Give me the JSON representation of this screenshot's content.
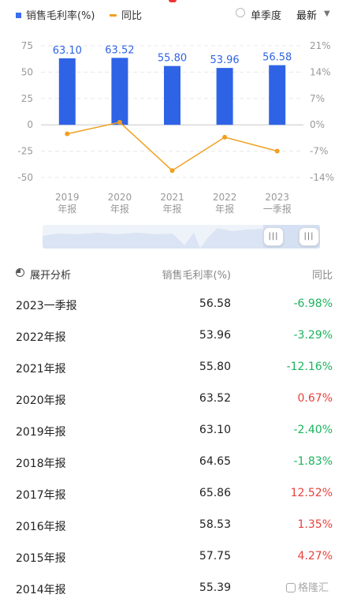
{
  "legend": {
    "gross_margin": "销售毛利率(%)",
    "yoy": "同比"
  },
  "controls": {
    "single_quarter": "单季度",
    "latest": "最新"
  },
  "chart_data": {
    "type": "bar",
    "categories": [
      [
        "2019",
        "年报"
      ],
      [
        "2020",
        "年报"
      ],
      [
        "2021",
        "年报"
      ],
      [
        "2022",
        "年报"
      ],
      [
        "2023",
        "一季报"
      ]
    ],
    "series": [
      {
        "name": "销售毛利率(%)",
        "type": "bar",
        "axis": "left",
        "values": [
          63.1,
          63.52,
          55.8,
          53.96,
          56.58
        ],
        "labels": [
          "63.10",
          "63.52",
          "55.80",
          "53.96",
          "56.58"
        ],
        "color": "#2f63e6"
      },
      {
        "name": "同比",
        "type": "line",
        "axis": "right",
        "values": [
          -2.4,
          0.67,
          -12.16,
          -3.29,
          -6.98
        ],
        "color": "#f0a020"
      }
    ],
    "y_left": {
      "range": [
        -50,
        75
      ],
      "ticks": [
        "75",
        "50",
        "25",
        "0",
        "-25",
        "-50"
      ]
    },
    "y_right": {
      "range": [
        -14,
        21
      ],
      "ticks": [
        "21%",
        "14%",
        "7%",
        "0%",
        "-7%",
        "-14%"
      ]
    },
    "grid": true
  },
  "table": {
    "expand_label": "展开分析",
    "col_value": "销售毛利率(%)",
    "col_yoy": "同比",
    "rows": [
      {
        "period": "2023一季报",
        "value": "56.58",
        "yoy": "-6.98%",
        "trend": "down"
      },
      {
        "period": "2022年报",
        "value": "53.96",
        "yoy": "-3.29%",
        "trend": "down"
      },
      {
        "period": "2021年报",
        "value": "55.80",
        "yoy": "-12.16%",
        "trend": "down"
      },
      {
        "period": "2020年报",
        "value": "63.52",
        "yoy": "0.67%",
        "trend": "up"
      },
      {
        "period": "2019年报",
        "value": "63.10",
        "yoy": "-2.40%",
        "trend": "down"
      },
      {
        "period": "2018年报",
        "value": "64.65",
        "yoy": "-1.83%",
        "trend": "down"
      },
      {
        "period": "2017年报",
        "value": "65.86",
        "yoy": "12.52%",
        "trend": "up"
      },
      {
        "period": "2016年报",
        "value": "58.53",
        "yoy": "1.35%",
        "trend": "up"
      },
      {
        "period": "2015年报",
        "value": "57.75",
        "yoy": "4.27%",
        "trend": "up"
      },
      {
        "period": "2014年报",
        "value": "55.39",
        "yoy": "",
        "trend": "none"
      }
    ]
  },
  "colors": {
    "up": "#e8413c",
    "down": "#1bb35c",
    "bar": "#2f63e6",
    "line": "#f0a020"
  },
  "watermark": "格隆汇"
}
